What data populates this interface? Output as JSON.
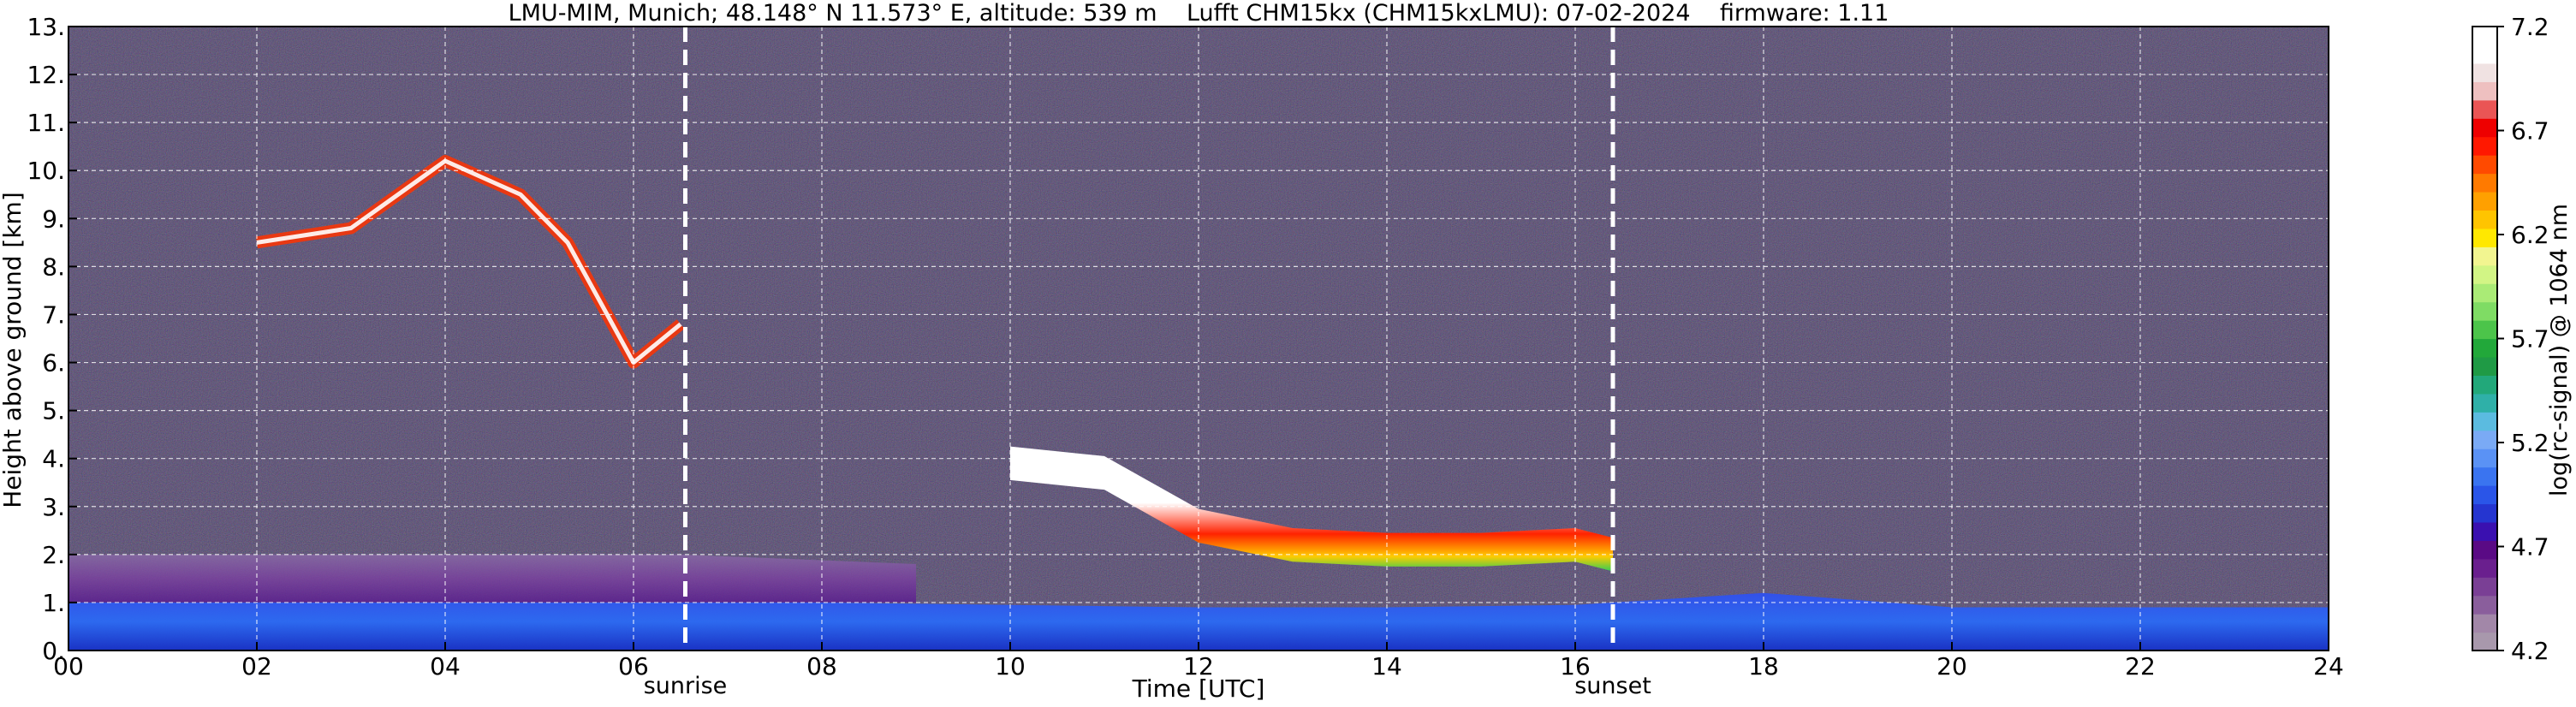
{
  "chart_data": {
    "type": "heatmap",
    "title": "LMU-MIM, Munich; 48.148° N 11.573° E, altitude: 539 m    Lufft CHM15kx (CHM15kxLMU): 07-02-2024    firmware: 1.11",
    "xlabel": "Time [UTC]",
    "ylabel": "Height above ground [km]",
    "xlim": [
      0,
      24
    ],
    "ylim": [
      0,
      13
    ],
    "x_ticks": [
      0,
      2,
      4,
      6,
      8,
      10,
      12,
      14,
      16,
      18,
      20,
      22,
      24
    ],
    "x_tick_labels": [
      "00",
      "02",
      "04",
      "06",
      "08",
      "10",
      "12",
      "14",
      "16",
      "18",
      "20",
      "22",
      "24"
    ],
    "y_ticks": [
      0,
      1,
      2,
      3,
      4,
      5,
      6,
      7,
      8,
      9,
      10,
      11,
      12,
      13
    ],
    "y_tick_labels": [
      "0.",
      "1.",
      "2.",
      "3.",
      "4.",
      "5.",
      "6.",
      "7.",
      "8.",
      "9.",
      "10.",
      "11.",
      "12.",
      "13."
    ],
    "grid": true,
    "markers": [
      {
        "label": "sunrise",
        "x": 6.55
      },
      {
        "label": "sunset",
        "x": 16.4
      }
    ],
    "colorbar": {
      "label": "log(rc-signal) @ 1064 nm",
      "min": 4.2,
      "max": 7.2,
      "ticks": [
        4.2,
        4.7,
        5.2,
        5.7,
        6.2,
        6.7,
        7.2
      ],
      "tick_labels": [
        "4.2",
        "4.7",
        "5.2",
        "5.7",
        "6.2",
        "6.7",
        "7.2"
      ],
      "colors": [
        "#a898ac",
        "#a287a8",
        "#8a5e9c",
        "#7a3f95",
        "#6a1f8e",
        "#5a0a85",
        "#3a10b0",
        "#2535d0",
        "#2a55e8",
        "#3a74f0",
        "#5a92f5",
        "#7aaaf5",
        "#5bbbe0",
        "#2fb0a8",
        "#22a87a",
        "#1f9a45",
        "#22a83a",
        "#4cc44a",
        "#7fdc64",
        "#aaeb76",
        "#d2f585",
        "#f2f590",
        "#ffe800",
        "#ffc400",
        "#ffa000",
        "#ff7a00",
        "#ff4a00",
        "#ff1800",
        "#ee0000",
        "#ea5555",
        "#eec0c0",
        "#f0e2e2",
        "#ffffff",
        "#ffffff"
      ]
    },
    "features": [
      {
        "kind": "boundary_layer",
        "t": [
          0,
          6,
          8,
          10,
          12,
          14,
          16,
          18,
          20,
          24
        ],
        "top_km": [
          1.0,
          1.0,
          1.0,
          0.95,
          0.9,
          0.9,
          0.95,
          1.2,
          0.9,
          0.9
        ]
      },
      {
        "kind": "residual_layer",
        "t": [
          0,
          6.5,
          9
        ],
        "top_km": [
          2.0,
          2.0,
          1.8
        ]
      },
      {
        "kind": "cloud",
        "t": [
          10,
          11,
          12,
          13,
          14,
          15,
          16,
          16.4
        ],
        "height_km": [
          4.1,
          3.9,
          2.8,
          2.4,
          2.3,
          2.3,
          2.4,
          2.2
        ]
      },
      {
        "kind": "cirrus",
        "t": [
          2,
          3,
          4,
          4.8,
          5.3,
          6,
          6.5
        ],
        "height_km": [
          8.5,
          8.8,
          10.2,
          9.5,
          8.5,
          6.0,
          6.8
        ]
      }
    ]
  }
}
